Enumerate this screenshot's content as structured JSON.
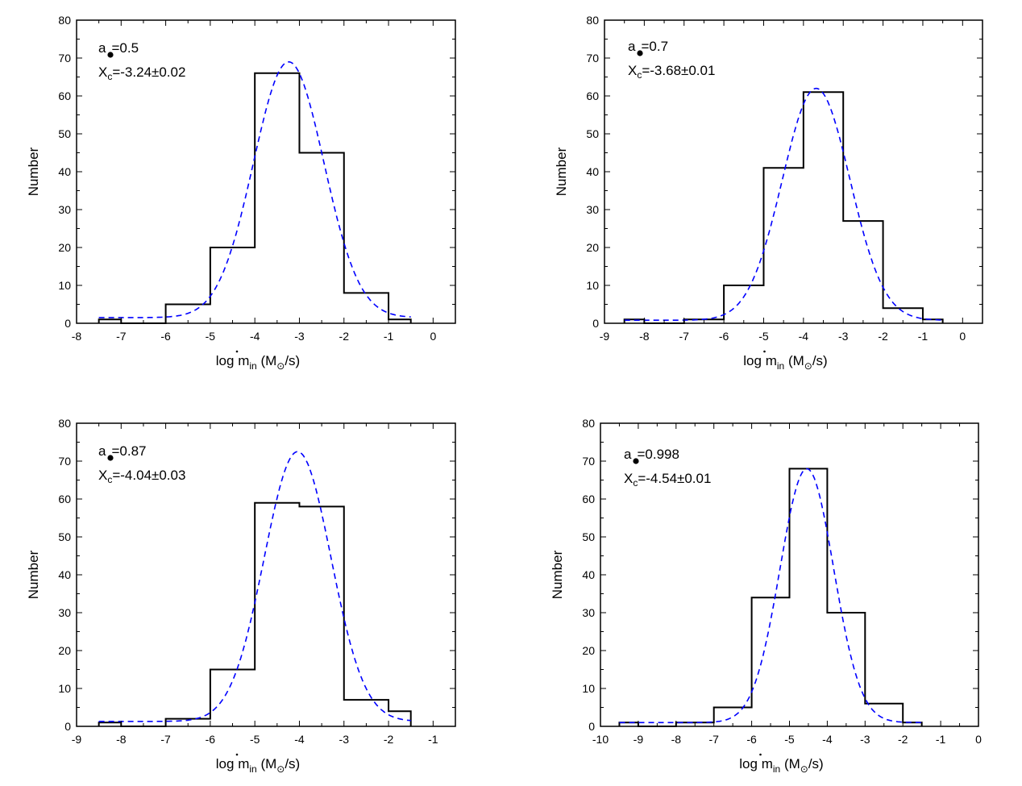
{
  "chart_data": [
    {
      "type": "bar",
      "subtype": "histogram-with-gaussian-fit",
      "annotation": {
        "spin_label": "a",
        "spin_value": "=0.5",
        "xc_label": "X",
        "xc_sub": "c",
        "xc_value": "=-3.24±0.02"
      },
      "xlim": [
        -8,
        0.5
      ],
      "ylim": [
        0,
        80
      ],
      "xticks": [
        -8,
        -7,
        -6,
        -5,
        -4,
        -3,
        -2,
        -1,
        0
      ],
      "yticks": [
        0,
        10,
        20,
        30,
        40,
        50,
        60,
        70,
        80
      ],
      "bin_edges": [
        -7.5,
        -7,
        -6,
        -5,
        -4,
        -3,
        -2,
        -1,
        -0.5
      ],
      "counts": [
        1,
        0,
        5,
        20,
        66,
        45,
        8,
        1
      ],
      "fit": {
        "center": -3.24,
        "peak": 69,
        "sigma": 0.79,
        "baseline": 1.5
      },
      "xlabel": {
        "pre": "log ",
        "m": "m",
        "sub": "in",
        "open": " (M",
        "sun": "⊙",
        "close": "/s)"
      },
      "ylabel": "Number"
    },
    {
      "type": "bar",
      "subtype": "histogram-with-gaussian-fit",
      "annotation": {
        "spin_label": "a",
        "spin_value": "=0.7",
        "xc_label": "X",
        "xc_sub": "c",
        "xc_value": "=-3.68±0.01"
      },
      "xlim": [
        -9,
        0.5
      ],
      "ylim": [
        0,
        80
      ],
      "xticks": [
        -9,
        -8,
        -7,
        -6,
        -5,
        -4,
        -3,
        -2,
        -1,
        0
      ],
      "yticks": [
        0,
        10,
        20,
        30,
        40,
        50,
        60,
        70,
        80
      ],
      "bin_edges": [
        -8.5,
        -8,
        -7,
        -6,
        -5,
        -4,
        -3,
        -2,
        -1,
        -0.5
      ],
      "counts": [
        1,
        0,
        1,
        10,
        41,
        61,
        27,
        4,
        1
      ],
      "fit": {
        "center": -3.68,
        "peak": 62,
        "sigma": 0.85,
        "baseline": 0.8
      },
      "xlabel": {
        "pre": "log ",
        "m": "m",
        "sub": "in",
        "open": " (M",
        "sun": "⊙",
        "close": "/s)"
      },
      "ylabel": "Number"
    },
    {
      "type": "bar",
      "subtype": "histogram-with-gaussian-fit",
      "annotation": {
        "spin_label": "a",
        "spin_value": "=0.87",
        "xc_label": "X",
        "xc_sub": "c",
        "xc_value": "=-4.04±0.03"
      },
      "xlim": [
        -9,
        -0.5
      ],
      "ylim": [
        0,
        80
      ],
      "xticks": [
        -9,
        -8,
        -7,
        -6,
        -5,
        -4,
        -3,
        -2,
        -1
      ],
      "yticks": [
        0,
        10,
        20,
        30,
        40,
        50,
        60,
        70,
        80
      ],
      "bin_edges": [
        -8.5,
        -8,
        -7,
        -6,
        -5,
        -4,
        -3,
        -2,
        -1.5
      ],
      "counts": [
        1,
        0,
        2,
        15,
        59,
        58,
        7,
        4
      ],
      "fit": {
        "center": -4.04,
        "peak": 72.5,
        "sigma": 0.75,
        "baseline": 1.3
      },
      "xlabel": {
        "pre": "log ",
        "m": "m",
        "sub": "in",
        "open": " (M",
        "sun": "⊙",
        "close": "/s)"
      },
      "ylabel": "Number"
    },
    {
      "type": "bar",
      "subtype": "histogram-with-gaussian-fit",
      "annotation": {
        "spin_label": "a",
        "spin_value": "=0.998",
        "xc_label": "X",
        "xc_sub": "c",
        "xc_value": "=-4.54±0.01"
      },
      "xlim": [
        -10,
        0
      ],
      "ylim": [
        0,
        80
      ],
      "xticks": [
        -10,
        -9,
        -8,
        -7,
        -6,
        -5,
        -4,
        -3,
        -2,
        -1,
        0
      ],
      "yticks": [
        0,
        10,
        20,
        30,
        40,
        50,
        60,
        70,
        80
      ],
      "bin_edges": [
        -9.5,
        -9,
        -8,
        -7,
        -6,
        -5,
        -4,
        -3,
        -2,
        -1.5
      ],
      "counts": [
        1,
        0,
        1,
        5,
        34,
        68,
        30,
        6,
        1
      ],
      "fit": {
        "center": -4.54,
        "peak": 68,
        "sigma": 0.71,
        "baseline": 1.0
      },
      "xlabel": {
        "pre": "log ",
        "m": "m",
        "sub": "in",
        "open": " (M",
        "sun": "⊙",
        "close": "/s)"
      },
      "ylabel": "Number"
    }
  ],
  "colors": {
    "hist": "#000000",
    "fit": "#0000ff"
  }
}
